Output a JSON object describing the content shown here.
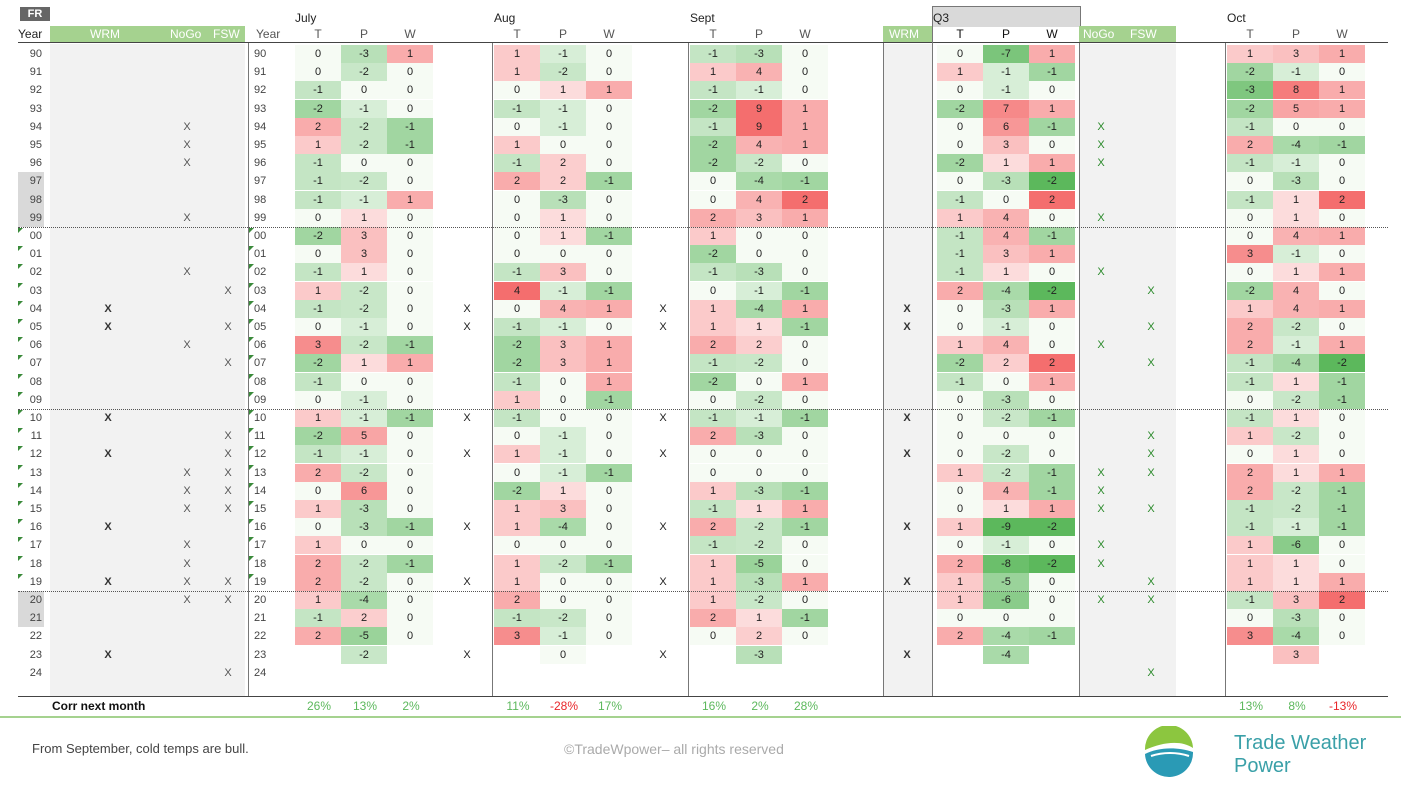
{
  "header": {
    "country": "FR",
    "year_label": "Year",
    "year_label_2": "Year",
    "wrm": "WRM",
    "nogo": "NoGo",
    "fsw": "FSW",
    "wrm_q3": "WRM",
    "nogo_q3": "NoGo",
    "fsw_q3": "FSW",
    "sub_t": "T",
    "sub_p": "P",
    "sub_w": "W",
    "blocks": [
      "July",
      "Aug",
      "Sept",
      "Q3",
      "Oct"
    ]
  },
  "years": [
    "90",
    "91",
    "92",
    "93",
    "94",
    "95",
    "96",
    "97",
    "98",
    "99",
    "00",
    "01",
    "02",
    "03",
    "04",
    "05",
    "06",
    "07",
    "08",
    "09",
    "10",
    "11",
    "12",
    "13",
    "14",
    "15",
    "16",
    "17",
    "18",
    "19",
    "20",
    "21",
    "22",
    "23",
    "24"
  ],
  "marks": {
    "wrm": [
      "",
      "",
      "",
      "",
      "",
      "",
      "",
      "",
      "",
      "",
      "",
      "",
      "",
      "",
      "X",
      "X",
      "",
      "",
      "",
      "",
      "X",
      "",
      "X",
      "",
      "",
      "",
      "X",
      "",
      "",
      "X",
      "",
      "",
      "",
      "X",
      ""
    ],
    "nogo": [
      "",
      "",
      "",
      "",
      "X",
      "X",
      "X",
      "",
      "",
      "X",
      "",
      "",
      "X",
      "",
      "",
      "",
      "X",
      "",
      "",
      "",
      "",
      "",
      "",
      "X",
      "X",
      "X",
      "",
      "X",
      "X",
      "X",
      "X",
      "",
      "",
      "",
      ""
    ],
    "fsw": [
      "",
      "",
      "",
      "",
      "",
      "",
      "",
      "",
      "",
      "",
      "",
      "",
      "",
      "X",
      "",
      "X",
      "",
      "X",
      "",
      "",
      "",
      "X",
      "X",
      "X",
      "X",
      "X",
      "",
      "",
      "",
      "X",
      "X",
      "",
      "",
      "",
      "X"
    ],
    "q3_nogo": [
      "",
      "",
      "",
      "",
      "X",
      "X",
      "X",
      "",
      "",
      "X",
      "",
      "",
      "X",
      "",
      "",
      "",
      "X",
      "",
      "",
      "",
      "",
      "",
      "",
      "X",
      "X",
      "X",
      "",
      "X",
      "X",
      "",
      "X",
      "",
      "",
      "",
      ""
    ],
    "q3_fsw": [
      "",
      "",
      "",
      "",
      "",
      "",
      "",
      "",
      "",
      "",
      "",
      "",
      "",
      "X",
      "",
      "X",
      "",
      "X",
      "",
      "",
      "",
      "X",
      "X",
      "X",
      "",
      "X",
      "",
      "",
      "",
      "X",
      "X",
      "",
      "",
      "",
      "X"
    ]
  },
  "corr_label": "Corr next month",
  "blocks": [
    {
      "name": "July",
      "T": [
        "0",
        "0",
        "-1",
        "-2",
        "2",
        "1",
        "-1",
        "-1",
        "-1",
        "0",
        "-2",
        "0",
        "-1",
        "1",
        "-1",
        "0",
        "3",
        "-2",
        "-1",
        "0",
        "1",
        "-2",
        "-1",
        "2",
        "0",
        "1",
        "0",
        "1",
        "2",
        "2",
        "1",
        "-1",
        "2",
        "",
        ""
      ],
      "P": [
        "-3",
        "-2",
        "0",
        "-1",
        "-2",
        "-2",
        "0",
        "-2",
        "-1",
        "1",
        "3",
        "3",
        "1",
        "-2",
        "-2",
        "-1",
        "-2",
        "1",
        "0",
        "-1",
        "-1",
        "5",
        "-1",
        "-2",
        "6",
        "-3",
        "-3",
        "0",
        "-2",
        "-2",
        "-4",
        "2",
        "-5",
        "-2",
        ""
      ],
      "W": [
        "1",
        "0",
        "0",
        "0",
        "-1",
        "-1",
        "0",
        "0",
        "1",
        "0",
        "0",
        "0",
        "0",
        "0",
        "0",
        "0",
        "-1",
        "1",
        "0",
        "0",
        "-1",
        "0",
        "0",
        "0",
        "0",
        "0",
        "-1",
        "0",
        "-1",
        "0",
        "0",
        "0",
        "0",
        "",
        ""
      ],
      "corr": [
        "26%",
        "13%",
        "2%"
      ]
    },
    {
      "name": "Aug",
      "T": [
        "1",
        "1",
        "0",
        "-1",
        "0",
        "1",
        "-1",
        "2",
        "0",
        "0",
        "0",
        "0",
        "-1",
        "4",
        "0",
        "-1",
        "-2",
        "-2",
        "-1",
        "1",
        "-1",
        "0",
        "1",
        "0",
        "-2",
        "1",
        "1",
        "0",
        "1",
        "1",
        "2",
        "-1",
        "3",
        "",
        ""
      ],
      "P": [
        "-1",
        "-2",
        "1",
        "-1",
        "-1",
        "0",
        "2",
        "2",
        "-3",
        "1",
        "1",
        "0",
        "3",
        "-1",
        "4",
        "-1",
        "3",
        "3",
        "0",
        "0",
        "0",
        "-1",
        "-1",
        "-1",
        "1",
        "3",
        "-4",
        "0",
        "-2",
        "0",
        "0",
        "-2",
        "-1",
        "0",
        ""
      ],
      "W": [
        "0",
        "0",
        "1",
        "0",
        "0",
        "0",
        "0",
        "-1",
        "0",
        "0",
        "-1",
        "0",
        "0",
        "-1",
        "1",
        "0",
        "1",
        "1",
        "1",
        "-1",
        "0",
        "0",
        "0",
        "-1",
        "0",
        "0",
        "0",
        "0",
        "-1",
        "0",
        "0",
        "0",
        "0",
        "",
        ""
      ],
      "corr": [
        "11%",
        "-28%",
        "17%"
      ]
    },
    {
      "name": "Sept",
      "T": [
        "-1",
        "1",
        "-1",
        "-2",
        "-1",
        "-2",
        "-2",
        "0",
        "0",
        "2",
        "1",
        "-2",
        "-1",
        "0",
        "1",
        "1",
        "2",
        "-1",
        "-2",
        "0",
        "-1",
        "2",
        "0",
        "0",
        "1",
        "-1",
        "2",
        "-1",
        "1",
        "1",
        "1",
        "2",
        "0",
        "",
        ""
      ],
      "P": [
        "-3",
        "4",
        "-1",
        "9",
        "9",
        "4",
        "-2",
        "-4",
        "4",
        "3",
        "0",
        "0",
        "-3",
        "-1",
        "-4",
        "1",
        "2",
        "-2",
        "0",
        "-2",
        "-1",
        "-3",
        "0",
        "0",
        "-3",
        "1",
        "-2",
        "-2",
        "-5",
        "-3",
        "-2",
        "1",
        "2",
        "-3",
        ""
      ],
      "W": [
        "0",
        "0",
        "0",
        "1",
        "1",
        "1",
        "0",
        "-1",
        "2",
        "1",
        "0",
        "0",
        "0",
        "-1",
        "1",
        "-1",
        "0",
        "0",
        "1",
        "0",
        "-1",
        "0",
        "0",
        "0",
        "-1",
        "1",
        "-1",
        "0",
        "0",
        "1",
        "0",
        "-1",
        "0",
        "",
        ""
      ],
      "corr": [
        "16%",
        "2%",
        "28%"
      ]
    },
    {
      "name": "Q3",
      "T": [
        "0",
        "1",
        "0",
        "-2",
        "0",
        "0",
        "-2",
        "0",
        "-1",
        "1",
        "-1",
        "-1",
        "-1",
        "2",
        "0",
        "0",
        "1",
        "-2",
        "-1",
        "0",
        "0",
        "0",
        "0",
        "1",
        "0",
        "0",
        "1",
        "0",
        "2",
        "1",
        "1",
        "0",
        "2",
        "",
        ""
      ],
      "P": [
        "-7",
        "-1",
        "-1",
        "7",
        "6",
        "3",
        "1",
        "-3",
        "0",
        "4",
        "4",
        "3",
        "1",
        "-4",
        "-3",
        "-1",
        "4",
        "2",
        "0",
        "-3",
        "-2",
        "0",
        "-2",
        "-2",
        "4",
        "1",
        "-9",
        "-1",
        "-8",
        "-5",
        "-6",
        "0",
        "-4",
        "-4",
        ""
      ],
      "W": [
        "1",
        "-1",
        "0",
        "1",
        "-1",
        "0",
        "1",
        "-2",
        "2",
        "0",
        "-1",
        "1",
        "0",
        "-2",
        "1",
        "0",
        "0",
        "2",
        "1",
        "0",
        "-1",
        "0",
        "0",
        "-1",
        "-1",
        "1",
        "-2",
        "0",
        "-2",
        "0",
        "0",
        "0",
        "-1",
        "",
        ""
      ],
      "corr": [
        "",
        "",
        ""
      ]
    },
    {
      "name": "Oct",
      "T": [
        "1",
        "-2",
        "-3",
        "-2",
        "-1",
        "2",
        "-1",
        "0",
        "-1",
        "0",
        "0",
        "3",
        "0",
        "-2",
        "1",
        "2",
        "2",
        "-1",
        "-1",
        "0",
        "-1",
        "1",
        "0",
        "2",
        "2",
        "-1",
        "-1",
        "1",
        "1",
        "1",
        "-1",
        "0",
        "3",
        "",
        ""
      ],
      "P": [
        "3",
        "-1",
        "8",
        "5",
        "0",
        "-4",
        "-1",
        "-3",
        "1",
        "1",
        "4",
        "-1",
        "1",
        "4",
        "4",
        "-2",
        "-1",
        "-4",
        "1",
        "-2",
        "1",
        "-2",
        "1",
        "1",
        "-2",
        "-2",
        "-1",
        "-6",
        "1",
        "1",
        "3",
        "-3",
        "-4",
        "3",
        ""
      ],
      "W": [
        "1",
        "0",
        "1",
        "1",
        "0",
        "-1",
        "0",
        "0",
        "2",
        "0",
        "1",
        "0",
        "1",
        "0",
        "1",
        "0",
        "1",
        "-2",
        "-1",
        "-1",
        "0",
        "0",
        "0",
        "1",
        "-1",
        "-1",
        "-1",
        "0",
        "0",
        "1",
        "2",
        "0",
        "0",
        "",
        ""
      ],
      "corr": [
        "13%",
        "8%",
        "-13%"
      ]
    }
  ],
  "footer": {
    "note": "From September, cold temps are bull.",
    "copyright": "©TradeWpower– all rights reserved",
    "brand_line1": "Trade Weather",
    "brand_line2": "Power"
  },
  "colors": {
    "green_header": "#a5d28f",
    "pos_strong": "#f46e6e",
    "neg_strong": "#5cb85c",
    "brand_teal": "#3aa0a8",
    "corr_pos": "#5cb85c",
    "corr_neg": "#e8262a"
  }
}
